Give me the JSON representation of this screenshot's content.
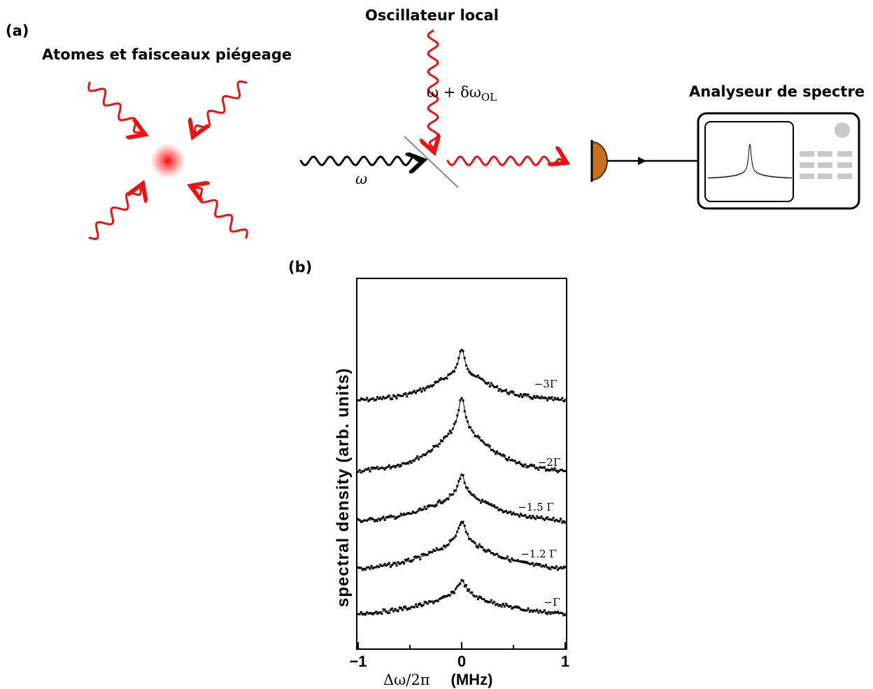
{
  "panel_a": {
    "panel_label": "(a)",
    "atoms_title": "Atomes et faisceaux piégeage",
    "local_osc_title": "Oscillateur local",
    "local_osc_freq": "ω + δω",
    "local_osc_sub": "OL",
    "signal_freq": "ω",
    "analyzer_title": "Analyseur de spectre",
    "colors": {
      "beam": "#ee1111",
      "signal": "#000000",
      "detector": "#c8701e",
      "splitter": "#888888",
      "buttons": "#c8c8c8"
    }
  },
  "panel_b": {
    "panel_label": "(b)",
    "ylabel": "spectral   density   (arb.   units)",
    "xlabel_sym": "Δω/2π",
    "xlabel_unit": "(MHz)"
  },
  "chart_data": {
    "type": "line",
    "title": "",
    "xlabel": "Δω/2π (MHz)",
    "ylabel": "spectral density (arb. units)",
    "xlim": [
      -1,
      1
    ],
    "x_ticks": [
      "−1",
      "0",
      "1"
    ],
    "series": [
      {
        "name": "−3Γ",
        "baseline": 0.0,
        "peak": 1.0,
        "width": 0.35
      },
      {
        "name": "−2Γ",
        "baseline": 0.0,
        "peak": 0.85,
        "width": 0.35
      },
      {
        "name": "−1.5  Γ",
        "baseline": 0.0,
        "peak": 0.55,
        "width": 0.4
      },
      {
        "name": "−1.2  Γ",
        "baseline": 0.0,
        "peak": 0.55,
        "width": 0.45
      },
      {
        "name": "−Γ",
        "baseline": 0.0,
        "peak": 0.35,
        "width": 0.5
      }
    ]
  }
}
